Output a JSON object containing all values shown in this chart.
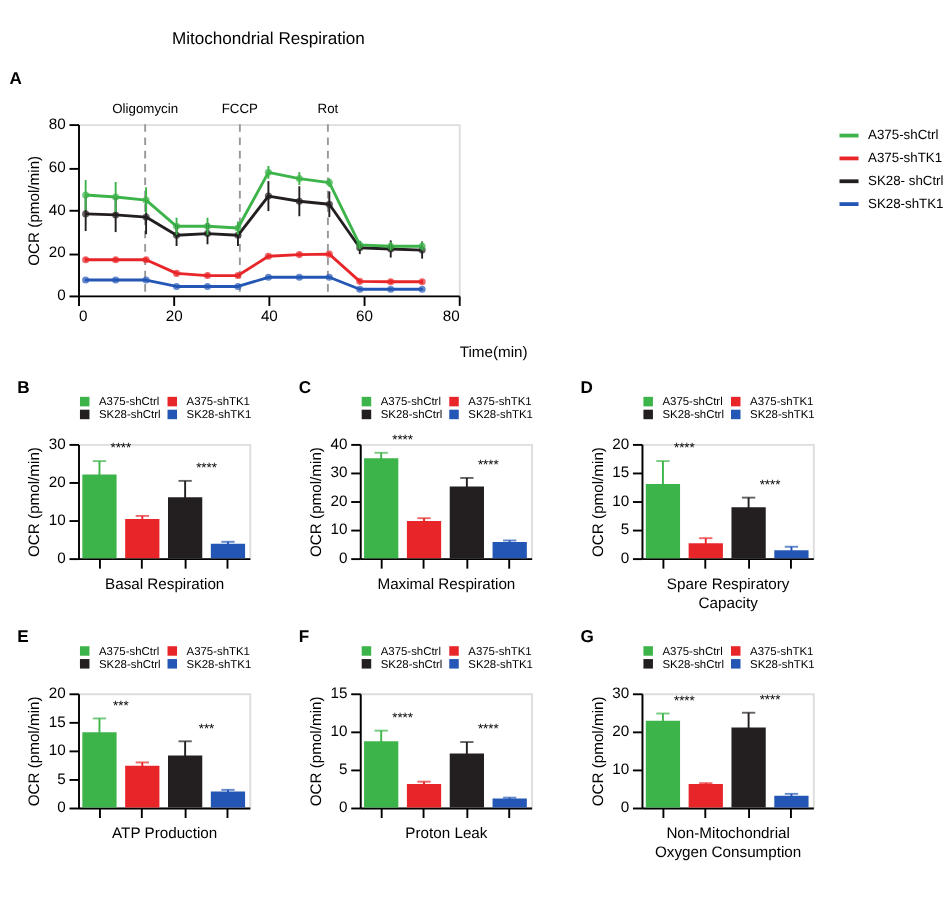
{
  "chart_data": [
    {
      "type": "line",
      "title": "Mitochondrial Respiration",
      "xlabel": "Time(min)",
      "ylabel": "OCR (pmol/min)",
      "annotations": [
        "A"
      ],
      "x": [
        1.6,
        7.9,
        14.3,
        20.7,
        27.2,
        33.6,
        40,
        46.5,
        52.8,
        59.2,
        65.7,
        72.3
      ],
      "xlim": [
        0,
        80
      ],
      "xticks": [
        0,
        20,
        40,
        60,
        80
      ],
      "ylim": [
        0,
        80
      ],
      "yticks": [
        0,
        20,
        40,
        60,
        80
      ],
      "series": [
        {
          "name": "A375-shCtrl",
          "color": "#3cb44a",
          "values": [
            46.9,
            46,
            44.5,
            32.3,
            32.3,
            31.5,
            57.5,
            54.6,
            52.7,
            23.6,
            23,
            23
          ],
          "errors": [
            7,
            7,
            6,
            4,
            4,
            3,
            3,
            3,
            2,
            2,
            2,
            2
          ]
        },
        {
          "name": "A375-shTK1",
          "color": "#e8262a",
          "values": [
            16.7,
            16.7,
            16.7,
            10.3,
            9.3,
            9.3,
            18.3,
            19.1,
            19.3,
            6.6,
            6.4,
            6.4
          ],
          "errors": [
            1,
            1,
            1,
            1,
            1,
            1,
            1,
            1,
            1,
            1,
            1,
            1
          ]
        },
        {
          "name": "SK28- shCtrl",
          "color": "#231f20",
          "values": [
            38.1,
            37.6,
            36.6,
            28.1,
            28.9,
            28.1,
            46.4,
            44,
            42.6,
            22.3,
            21.7,
            21.2
          ],
          "errors": [
            8,
            8,
            8,
            5,
            5,
            5,
            7,
            7,
            6,
            3,
            4,
            4
          ]
        },
        {
          "name": "SK28-shTK1",
          "color": "#2457b5",
          "values": [
            7.2,
            7.2,
            7.2,
            4.2,
            4.2,
            4.2,
            8.5,
            8.5,
            8.5,
            2.9,
            2.9,
            2.9
          ],
          "errors": [
            0.5,
            0.5,
            0.5,
            0.5,
            0.5,
            0.5,
            0.5,
            0.5,
            0.5,
            0.5,
            0.5,
            0.5
          ]
        }
      ],
      "ref_lines": [
        {
          "axis": "x",
          "value": 14.1,
          "label": "Oligomycin",
          "color": "#999999",
          "line_style": "dashed"
        },
        {
          "axis": "x",
          "value": 34,
          "label": "FCCP",
          "color": "#999999",
          "line_style": "dashed"
        },
        {
          "axis": "x",
          "value": 52.5,
          "label": "Rot",
          "color": "#999999",
          "line_style": "dashed"
        }
      ],
      "marker": "circle",
      "line_style": "solid",
      "grid": false,
      "legend": "right"
    },
    {
      "type": "bar",
      "xlabel": "Basal Respiration",
      "ylabel": "OCR (pmol/min)",
      "annotations": [
        "B",
        "****",
        "****"
      ],
      "categories": [
        null,
        null,
        null,
        null
      ],
      "ylim": [
        0,
        30
      ],
      "yticks": [
        0,
        10,
        20,
        30
      ],
      "tick_labels": "y",
      "grid": false,
      "legend": "top",
      "series": [
        {
          "name": "A375-shCtrl",
          "color": "#3cb44a",
          "values": [
            22,
            null,
            null,
            null
          ],
          "errors": [
            3.5,
            null,
            null,
            null
          ]
        },
        {
          "name": "A375-shTK1",
          "color": "#e8262a",
          "values": [
            null,
            10.3,
            null,
            null
          ],
          "errors": [
            null,
            0.8,
            null,
            null
          ]
        },
        {
          "name": "SK28-shCtrl",
          "color": "#231f20",
          "values": [
            null,
            null,
            16,
            null
          ],
          "errors": [
            null,
            null,
            4.3,
            null
          ]
        },
        {
          "name": "SK28-shTK1",
          "color": "#2457b5",
          "values": [
            null,
            null,
            null,
            3.8
          ],
          "errors": [
            null,
            null,
            null,
            0.5
          ]
        }
      ]
    },
    {
      "type": "bar",
      "xlabel": "Maximal Respiration",
      "ylabel": "OCR (pmol/min)",
      "annotations": [
        "C",
        "****",
        "****"
      ],
      "categories": [
        null,
        null,
        null,
        null
      ],
      "ylim": [
        0,
        40
      ],
      "yticks": [
        0,
        10,
        20,
        30,
        40
      ],
      "tick_labels": "y",
      "grid": false,
      "legend": "top",
      "series": [
        {
          "name": "A375-shCtrl",
          "color": "#3cb44a",
          "values": [
            35,
            null,
            null,
            null
          ],
          "errors": [
            1.9,
            null,
            null,
            null
          ]
        },
        {
          "name": "A375-shTK1",
          "color": "#e8262a",
          "values": [
            null,
            13,
            null,
            null
          ],
          "errors": [
            null,
            1,
            null,
            null
          ]
        },
        {
          "name": "SK28-shCtrl",
          "color": "#231f20",
          "values": [
            null,
            null,
            25.1,
            null
          ],
          "errors": [
            null,
            null,
            3,
            null
          ]
        },
        {
          "name": "SK28-shTK1",
          "color": "#2457b5",
          "values": [
            null,
            null,
            null,
            5.7
          ],
          "errors": [
            null,
            null,
            null,
            0.5
          ]
        }
      ]
    },
    {
      "type": "bar",
      "xlabel": "Spare Respiratory Capacity",
      "ylabel": "OCR (pmol/min)",
      "annotations": [
        "D",
        "****",
        "****"
      ],
      "categories": [
        null,
        null,
        null,
        null
      ],
      "ylim": [
        0,
        20
      ],
      "yticks": [
        0,
        5,
        10,
        15,
        20
      ],
      "tick_labels": "y",
      "grid": false,
      "legend": "top",
      "series": [
        {
          "name": "A375-shCtrl",
          "color": "#3cb44a",
          "values": [
            13,
            null,
            null,
            null
          ],
          "errors": [
            4,
            null,
            null,
            null
          ]
        },
        {
          "name": "A375-shTK1",
          "color": "#e8262a",
          "values": [
            null,
            2.6,
            null,
            null
          ],
          "errors": [
            null,
            0.9,
            null,
            null
          ]
        },
        {
          "name": "SK28-shCtrl",
          "color": "#231f20",
          "values": [
            null,
            null,
            8.9,
            null
          ],
          "errors": [
            null,
            null,
            1.7,
            null
          ]
        },
        {
          "name": "SK28-shTK1",
          "color": "#2457b5",
          "values": [
            null,
            null,
            null,
            1.4
          ],
          "errors": [
            null,
            null,
            null,
            0.6
          ]
        }
      ]
    },
    {
      "type": "bar",
      "xlabel": "ATP Production",
      "ylabel": "OCR (pmol/min)",
      "annotations": [
        "E",
        "***",
        "***"
      ],
      "categories": [
        null,
        null,
        null,
        null
      ],
      "ylim": [
        0,
        20
      ],
      "yticks": [
        0,
        5,
        10,
        15,
        20
      ],
      "tick_labels": "y",
      "grid": false,
      "legend": "top",
      "series": [
        {
          "name": "A375-shCtrl",
          "color": "#3cb44a",
          "values": [
            13.2,
            null,
            null,
            null
          ],
          "errors": [
            2.4,
            null,
            null,
            null
          ]
        },
        {
          "name": "A375-shTK1",
          "color": "#e8262a",
          "values": [
            null,
            7.3,
            null,
            null
          ],
          "errors": [
            null,
            0.6,
            null,
            null
          ]
        },
        {
          "name": "SK28-shCtrl",
          "color": "#231f20",
          "values": [
            null,
            null,
            9.1,
            null
          ],
          "errors": [
            null,
            null,
            2.5,
            null
          ]
        },
        {
          "name": "SK28-shTK1",
          "color": "#2457b5",
          "values": [
            null,
            null,
            null,
            2.8
          ],
          "errors": [
            null,
            null,
            null,
            0.3
          ]
        }
      ]
    },
    {
      "type": "bar",
      "xlabel": "Proton Leak",
      "ylabel": "OCR (pmol/min)",
      "annotations": [
        "F",
        "****",
        "****"
      ],
      "categories": [
        null,
        null,
        null,
        null
      ],
      "ylim": [
        0,
        15
      ],
      "yticks": [
        0,
        5,
        10,
        15
      ],
      "tick_labels": "y",
      "grid": false,
      "legend": "top",
      "series": [
        {
          "name": "A375-shCtrl",
          "color": "#3cb44a",
          "values": [
            8.7,
            null,
            null,
            null
          ],
          "errors": [
            1.4,
            null,
            null,
            null
          ]
        },
        {
          "name": "A375-shTK1",
          "color": "#e8262a",
          "values": [
            null,
            3.1,
            null,
            null
          ],
          "errors": [
            null,
            0.3,
            null,
            null
          ]
        },
        {
          "name": "SK28-shCtrl",
          "color": "#231f20",
          "values": [
            null,
            null,
            7.1,
            null
          ],
          "errors": [
            null,
            null,
            1.5,
            null
          ]
        },
        {
          "name": "SK28-shTK1",
          "color": "#2457b5",
          "values": [
            null,
            null,
            null,
            1.2
          ],
          "errors": [
            null,
            null,
            null,
            0.1
          ]
        }
      ]
    },
    {
      "type": "bar",
      "xlabel": "Non-Mitochondrial Oxygen Consumption",
      "ylabel": "OCR (pmol/min)",
      "annotations": [
        "G",
        "****",
        "****"
      ],
      "categories": [
        null,
        null,
        null,
        null
      ],
      "ylim": [
        0,
        30
      ],
      "yticks": [
        0,
        10,
        20,
        30
      ],
      "tick_labels": "y",
      "grid": false,
      "legend": "top",
      "series": [
        {
          "name": "A375-shCtrl",
          "color": "#3cb44a",
          "values": [
            22.8,
            null,
            null,
            null
          ],
          "errors": [
            1.9,
            null,
            null,
            null
          ]
        },
        {
          "name": "A375-shTK1",
          "color": "#e8262a",
          "values": [
            null,
            6.2,
            null,
            null
          ],
          "errors": [
            null,
            0.2,
            null,
            null
          ]
        },
        {
          "name": "SK28-shCtrl",
          "color": "#231f20",
          "values": [
            null,
            null,
            21,
            null
          ],
          "errors": [
            null,
            null,
            3.9,
            null
          ]
        },
        {
          "name": "SK28-shTK1",
          "color": "#2457b5",
          "values": [
            null,
            null,
            null,
            3.1
          ],
          "errors": [
            null,
            null,
            null,
            0.5
          ]
        }
      ]
    }
  ]
}
